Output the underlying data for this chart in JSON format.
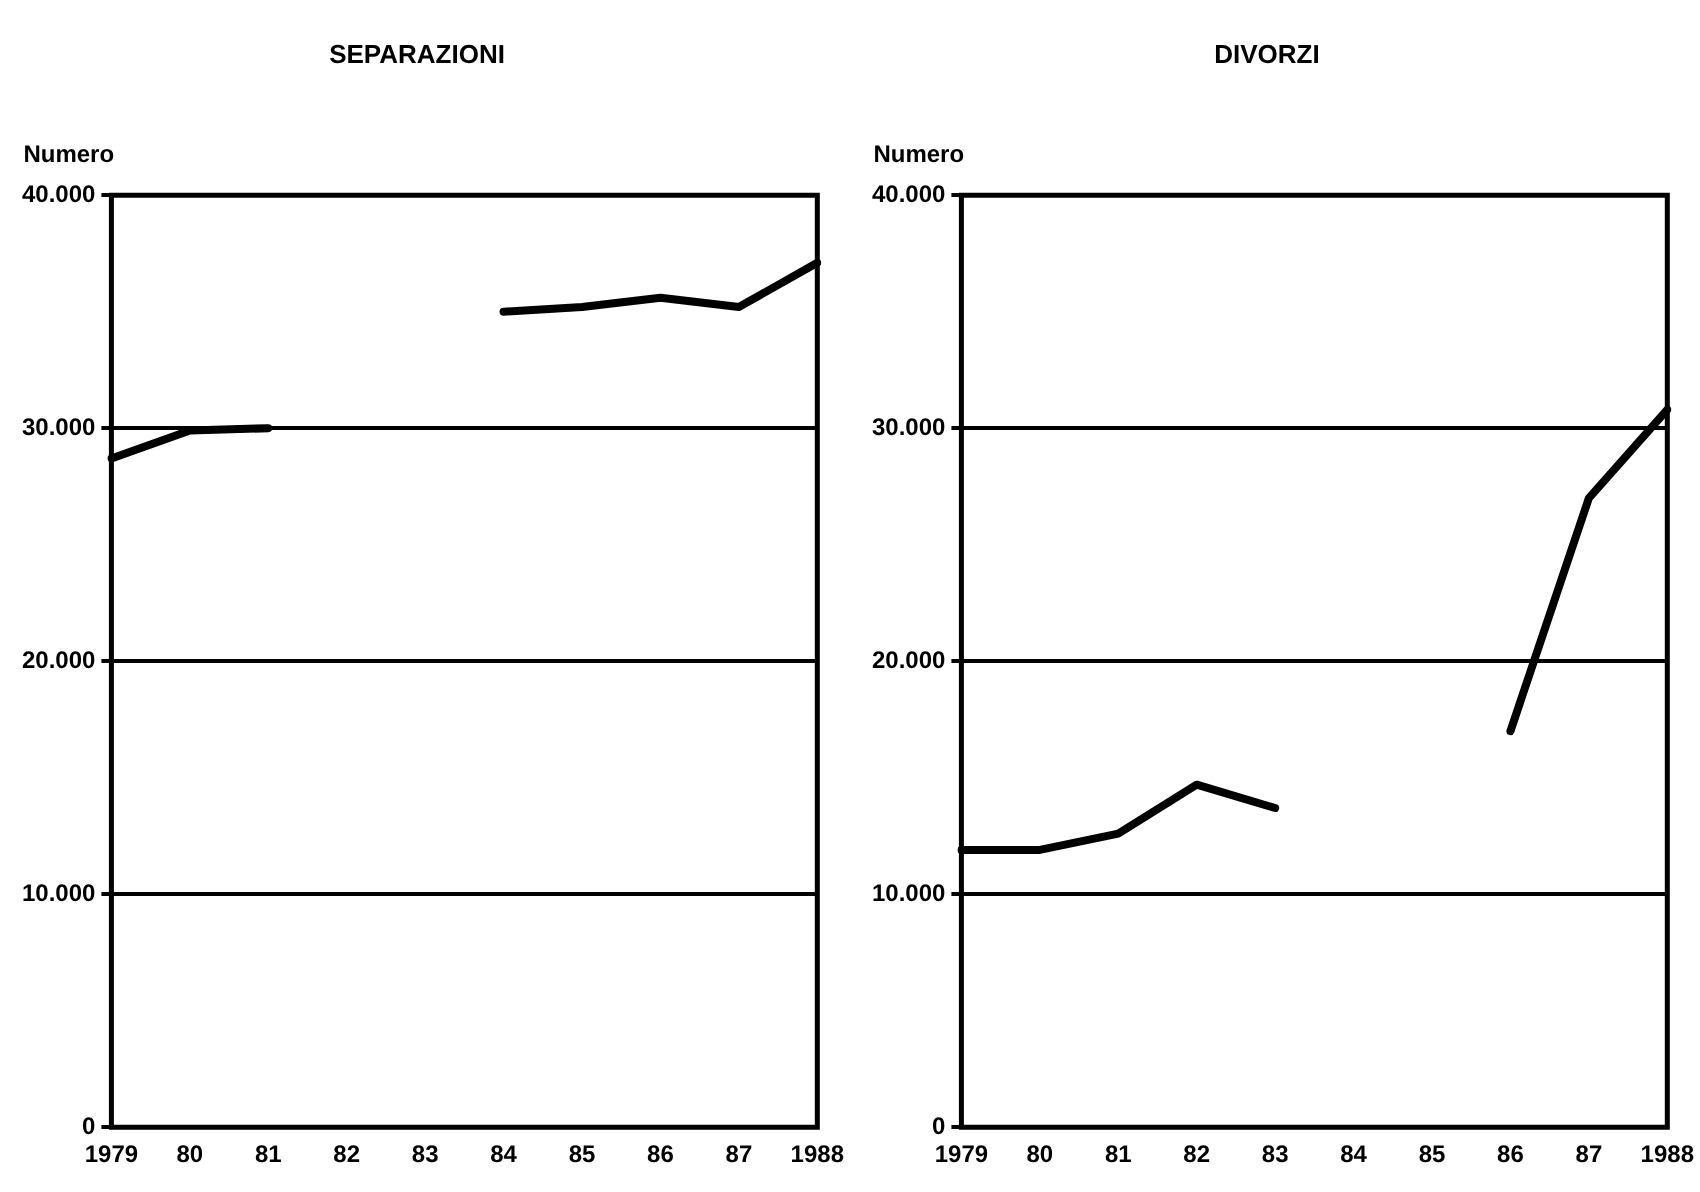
{
  "chart_data": [
    {
      "type": "line",
      "title": "SEPARAZIONI",
      "ylabel": "Numero",
      "categories": [
        "1979",
        "80",
        "81",
        "82",
        "83",
        "84",
        "85",
        "86",
        "87",
        "1988"
      ],
      "series": [
        {
          "color": "#000000",
          "values": [
            28700,
            29900,
            30000,
            null,
            null,
            35000,
            35200,
            35600,
            35200,
            37100
          ]
        }
      ],
      "ylim": [
        0,
        40000
      ],
      "yticks": [
        {
          "value": 0,
          "label": "0"
        },
        {
          "value": 10000,
          "label": "10.000"
        },
        {
          "value": 20000,
          "label": "20.000"
        },
        {
          "value": 30000,
          "label": "30.000"
        },
        {
          "value": 40000,
          "label": "40.000"
        }
      ],
      "grid": "y",
      "legend": false,
      "marker": "none"
    },
    {
      "type": "line",
      "title": "DIVORZI",
      "ylabel": "Numero",
      "categories": [
        "1979",
        "80",
        "81",
        "82",
        "83",
        "84",
        "85",
        "86",
        "87",
        "1988"
      ],
      "series": [
        {
          "color": "#000000",
          "values": [
            11900,
            11900,
            12600,
            14700,
            13700,
            null,
            null,
            17000,
            27000,
            30800
          ]
        }
      ],
      "ylim": [
        0,
        40000
      ],
      "yticks": [
        {
          "value": 0,
          "label": "0"
        },
        {
          "value": 10000,
          "label": "10.000"
        },
        {
          "value": 20000,
          "label": "20.000"
        },
        {
          "value": 30000,
          "label": "30.000"
        },
        {
          "value": 40000,
          "label": "40.000"
        }
      ],
      "grid": "y",
      "legend": false,
      "marker": "none"
    }
  ]
}
